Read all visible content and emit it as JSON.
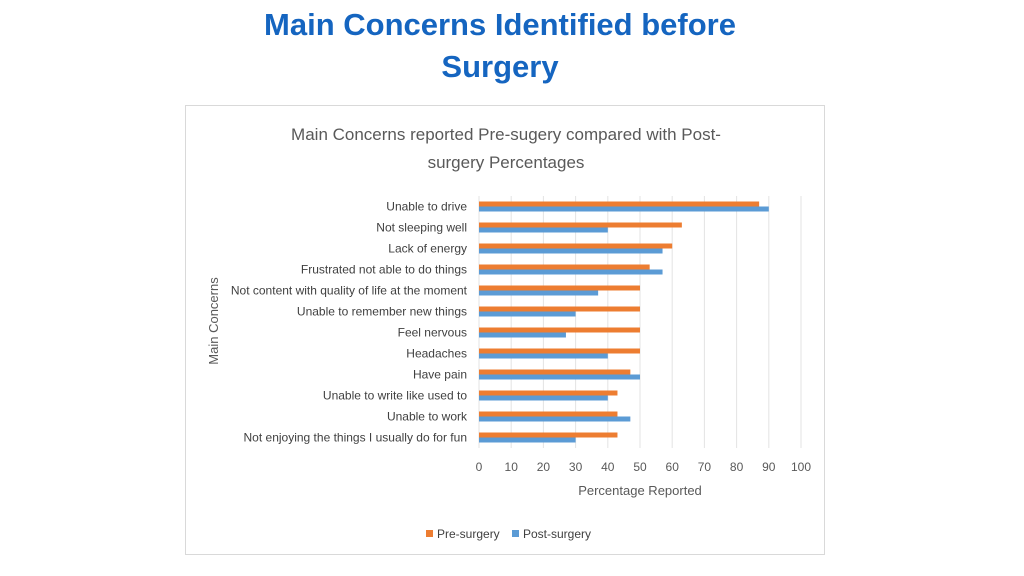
{
  "slide": {
    "title_line1": "Main Concerns Identified before",
    "title_line2": "Surgery"
  },
  "chart_data": {
    "type": "bar",
    "orientation": "horizontal",
    "title_lines": [
      "Main Concerns reported Pre-sugery compared with Post-",
      "surgery Percentages"
    ],
    "xlabel": "Percentage Reported",
    "ylabel": "Main Concerns",
    "xlim": [
      0,
      100
    ],
    "xticks": [
      0,
      10,
      20,
      30,
      40,
      50,
      60,
      70,
      80,
      90,
      100
    ],
    "grid": "vertical",
    "legend_position": "bottom",
    "categories": [
      "Unable to drive",
      "Not sleeping well",
      "Lack of energy",
      "Frustrated not able to do things",
      "Not content with quality of life at the moment",
      "Unable to remember new things",
      "Feel nervous",
      "Headaches",
      "Have pain",
      "Unable to write like used to",
      "Unable to work",
      "Not enjoying the things I usually do for fun"
    ],
    "series": [
      {
        "name": "Pre-surgery",
        "color": "#ed7d31",
        "values": [
          87,
          63,
          60,
          53,
          50,
          50,
          50,
          50,
          47,
          43,
          43,
          43
        ]
      },
      {
        "name": "Post-surgery",
        "color": "#5b9bd5",
        "values": [
          90,
          40,
          57,
          57,
          37,
          30,
          27,
          40,
          50,
          40,
          47,
          30
        ]
      }
    ]
  }
}
